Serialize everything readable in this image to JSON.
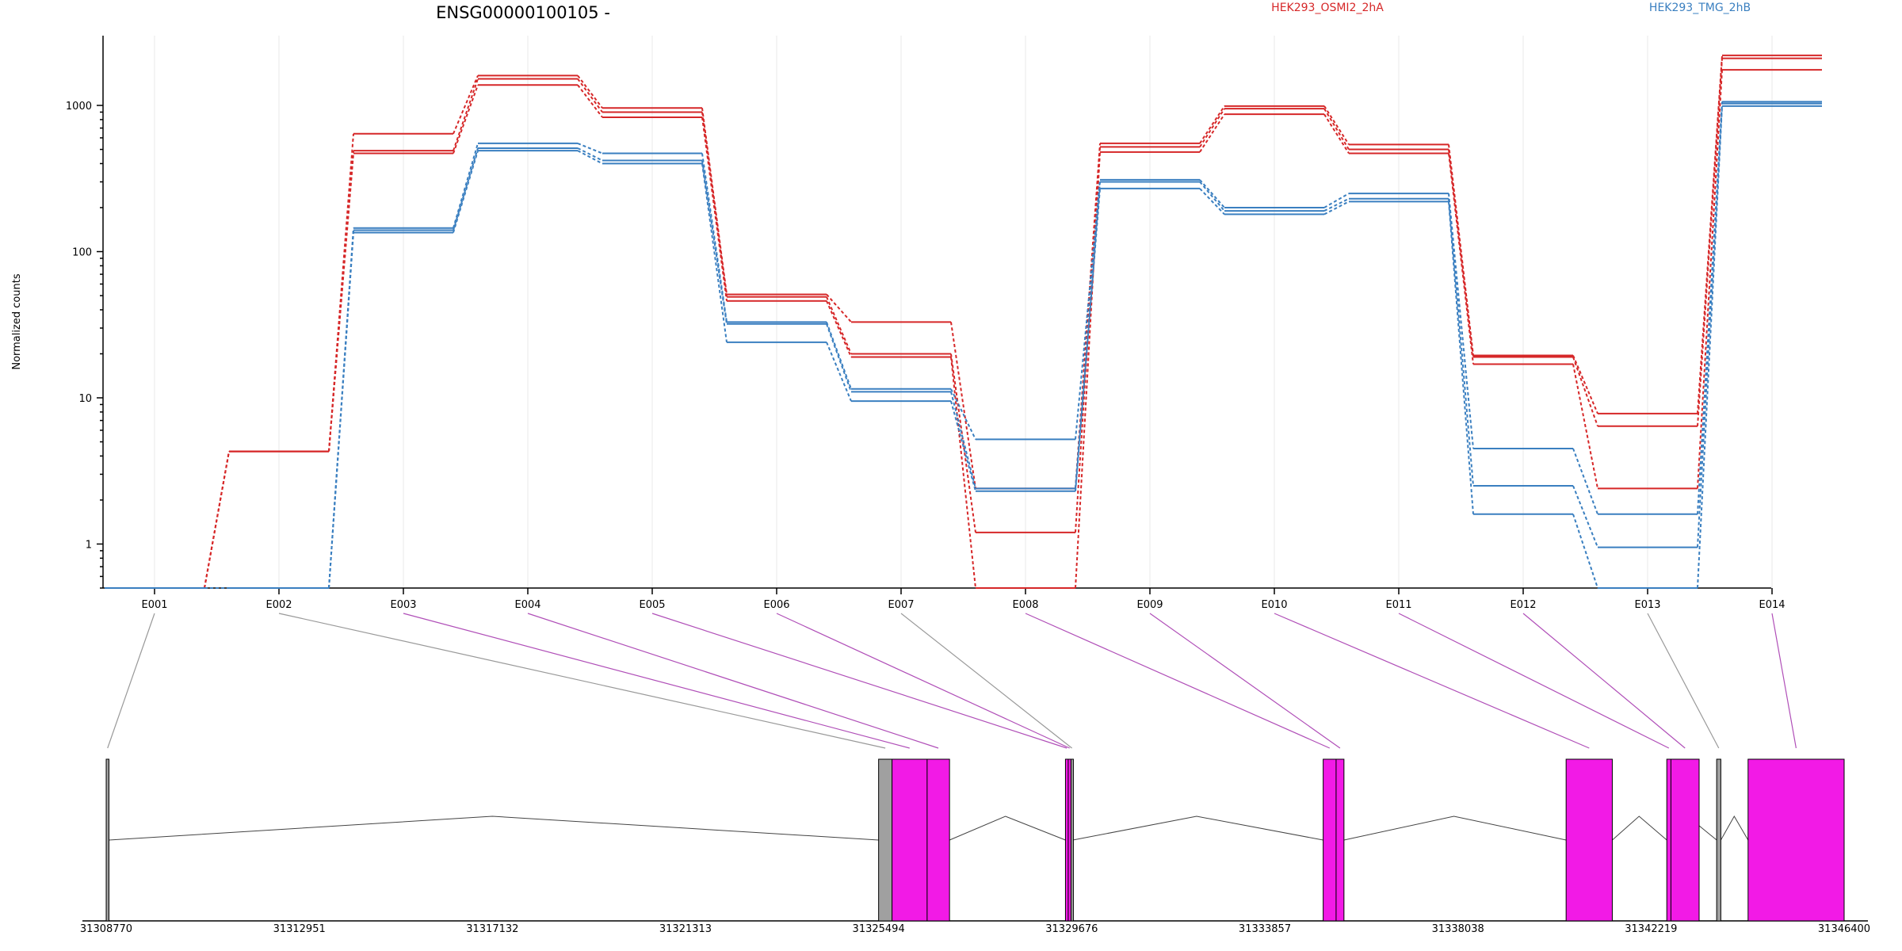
{
  "chart_data": {
    "type": "line",
    "title": "ENSG00000100105 -",
    "ylabel": "Normalized counts",
    "yscale": "log",
    "ylim": [
      0.5,
      3000
    ],
    "yticks": [
      1,
      10,
      100,
      1000
    ],
    "categories": [
      "E001",
      "E002",
      "E003",
      "E004",
      "E005",
      "E006",
      "E007",
      "E008",
      "E009",
      "E010",
      "E011",
      "E012",
      "E013",
      "E014"
    ],
    "colors": {
      "HEK293_OSMI2_2hA": "#d62728",
      "HEK293_TMG_2hB": "#3a7fc0",
      "exon": "#f21ae6",
      "exon_excluded": "#a0a0a0",
      "connector_tested": "#b04fb8",
      "connector_untested": "#999999"
    },
    "series": [
      {
        "name": "HEK293_OSMI2_2hA",
        "color": "#d62728",
        "values": [
          0.5,
          4.3,
          640,
          1600,
          960,
          51,
          33,
          2.4,
          550,
          990,
          540,
          19.5,
          7.8,
          2200
        ]
      },
      {
        "name": "HEK293_OSMI2_2hA",
        "color": "#d62728",
        "values": [
          0.5,
          4.3,
          490,
          1520,
          900,
          49,
          20,
          1.2,
          520,
          950,
          500,
          19,
          6.4,
          2100
        ]
      },
      {
        "name": "HEK293_OSMI2_2hA",
        "color": "#d62728",
        "values": [
          0.5,
          4.3,
          470,
          1380,
          830,
          46,
          19,
          0.5,
          480,
          870,
          470,
          17,
          2.4,
          1750
        ]
      },
      {
        "name": "HEK293_TMG_2hB",
        "color": "#3a7fc0",
        "values": [
          0.5,
          0.5,
          145,
          550,
          470,
          33,
          11.5,
          5.2,
          310,
          200,
          250,
          4.5,
          1.6,
          1060
        ]
      },
      {
        "name": "HEK293_TMG_2hB",
        "color": "#3a7fc0",
        "values": [
          0.5,
          0.5,
          140,
          510,
          420,
          32,
          11,
          2.4,
          300,
          190,
          230,
          2.5,
          0.95,
          1030
        ]
      },
      {
        "name": "HEK293_TMG_2hB",
        "color": "#3a7fc0",
        "values": [
          0.5,
          0.5,
          135,
          490,
          400,
          24,
          9.5,
          2.3,
          270,
          180,
          220,
          1.6,
          0.5,
          990
        ]
      }
    ],
    "legend": [
      {
        "label": "HEK293_OSMI2_2hA",
        "color": "#d62728"
      },
      {
        "label": "HEK293_TMG_2hB",
        "color": "#3a7fc0"
      }
    ],
    "gene_model": {
      "range": [
        31308770,
        31346400
      ],
      "ticks": [
        31308770,
        31312951,
        31317132,
        31321313,
        31325494,
        31329676,
        31333857,
        31338038,
        31342219,
        31346400
      ],
      "tick_labels": [
        "31308770",
        "31312951",
        "31317132",
        "31321313",
        "31325494",
        "31329676",
        "31333857",
        "31338038",
        "31342219",
        "31346400"
      ],
      "exons": [
        {
          "id": "E001",
          "start": 31308770,
          "end": 31308830,
          "tested": false
        },
        {
          "id": "E002",
          "start": 31325494,
          "end": 31325785,
          "tested": false
        },
        {
          "id": "E003",
          "start": 31325785,
          "end": 31326545,
          "tested": true
        },
        {
          "id": "E004",
          "start": 31326545,
          "end": 31327030,
          "tested": true
        },
        {
          "id": "E005",
          "start": 31329540,
          "end": 31329600,
          "tested": true
        },
        {
          "id": "E006",
          "start": 31329600,
          "end": 31329660,
          "tested": true
        },
        {
          "id": "E007",
          "start": 31329660,
          "end": 31329700,
          "tested": false
        },
        {
          "id": "E008",
          "start": 31335120,
          "end": 31335400,
          "tested": true
        },
        {
          "id": "E009",
          "start": 31335400,
          "end": 31335570,
          "tested": true
        },
        {
          "id": "E010",
          "start": 31340380,
          "end": 31341380,
          "tested": true
        },
        {
          "id": "E011",
          "start": 31342560,
          "end": 31342650,
          "tested": true
        },
        {
          "id": "E012",
          "start": 31342650,
          "end": 31343260,
          "tested": true
        },
        {
          "id": "E013",
          "start": 31343640,
          "end": 31343730,
          "tested": false
        },
        {
          "id": "E014",
          "start": 31344320,
          "end": 31346400,
          "tested": true
        }
      ],
      "introns": [
        {
          "from": 31308830,
          "to": 31325494,
          "peak": 31317132
        },
        {
          "from": 31327030,
          "to": 31329540,
          "peak": 31328240
        },
        {
          "from": 31329700,
          "to": 31335120,
          "peak": 31332380
        },
        {
          "from": 31335570,
          "to": 31340380,
          "peak": 31337950
        },
        {
          "from": 31341380,
          "to": 31342560,
          "peak": 31341960
        },
        {
          "from": 31342650,
          "to": 31343640,
          "peak": 31343010
        },
        {
          "from": 31343730,
          "to": 31344320,
          "peak": 31344020
        }
      ]
    }
  }
}
